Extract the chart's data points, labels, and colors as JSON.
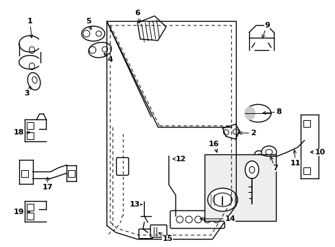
{
  "bg_color": "#ffffff",
  "fig_width": 4.89,
  "fig_height": 3.6,
  "dpi": 100,
  "line_color": "#000000",
  "label_fontsize": 8,
  "label_fontweight": "bold"
}
